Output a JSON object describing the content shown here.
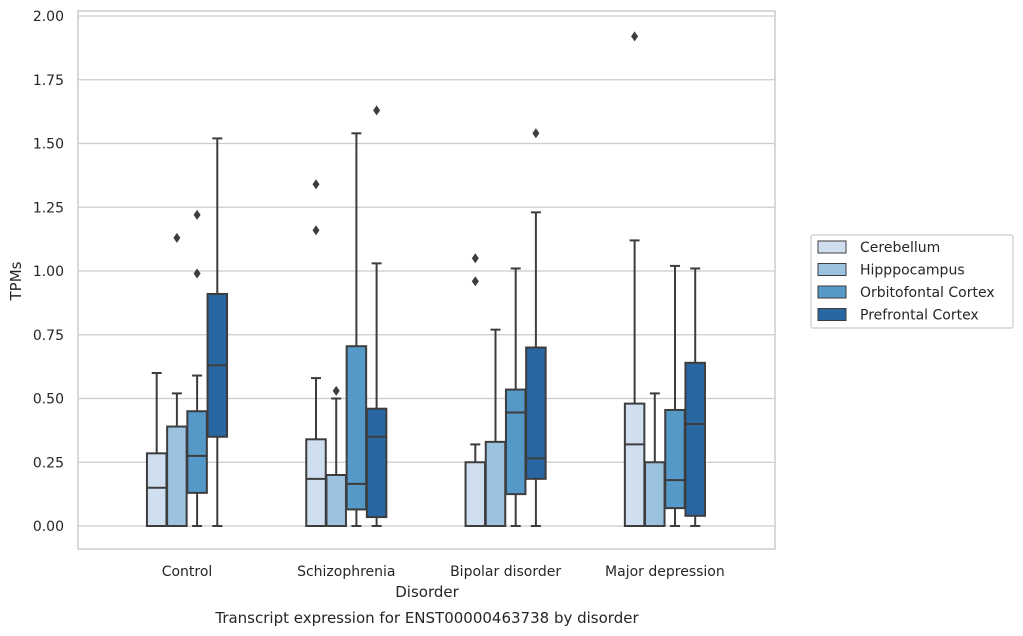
{
  "chart_data": {
    "type": "box",
    "caption": "Transcript expression for ENST00000463738 by disorder",
    "xlabel": "Disorder",
    "ylabel": "TPMs",
    "ylim": [
      -0.09,
      2.02
    ],
    "yticks": [
      "0.00",
      "0.25",
      "0.50",
      "0.75",
      "1.00",
      "1.25",
      "1.50",
      "1.75",
      "2.00"
    ],
    "grid": true,
    "legend_position": "right",
    "categories": [
      "Control",
      "Schizophrenia",
      "Bipolar disorder",
      "Major depression"
    ],
    "series": [
      {
        "name": "Cerebellum",
        "color": "#cfdff0",
        "boxes": [
          {
            "whisker_low": 0.0,
            "q1": 0.0,
            "median": 0.15,
            "q3": 0.285,
            "whisker_high": 0.6,
            "outliers": []
          },
          {
            "whisker_low": 0.0,
            "q1": 0.0,
            "median": 0.185,
            "q3": 0.34,
            "whisker_high": 0.58,
            "outliers": [
              1.16,
              1.34
            ]
          },
          {
            "whisker_low": 0.0,
            "q1": 0.0,
            "median": 0.0,
            "q3": 0.25,
            "whisker_high": 0.32,
            "outliers": [
              0.96,
              1.05
            ]
          },
          {
            "whisker_low": 0.0,
            "q1": 0.0,
            "median": 0.32,
            "q3": 0.48,
            "whisker_high": 1.12,
            "outliers": [
              1.92
            ]
          }
        ]
      },
      {
        "name": "Hipppocampus",
        "color": "#9bc3df",
        "boxes": [
          {
            "whisker_low": 0.0,
            "q1": 0.0,
            "median": 0.0,
            "q3": 0.39,
            "whisker_high": 0.52,
            "outliers": [
              1.13
            ]
          },
          {
            "whisker_low": 0.0,
            "q1": 0.0,
            "median": 0.0,
            "q3": 0.2,
            "whisker_high": 0.5,
            "outliers": [
              0.53
            ]
          },
          {
            "whisker_low": 0.0,
            "q1": 0.0,
            "median": 0.0,
            "q3": 0.33,
            "whisker_high": 0.77,
            "outliers": []
          },
          {
            "whisker_low": 0.0,
            "q1": 0.0,
            "median": 0.0,
            "q3": 0.25,
            "whisker_high": 0.52,
            "outliers": []
          }
        ]
      },
      {
        "name": "Orbitofontal Cortex",
        "color": "#5599c8",
        "boxes": [
          {
            "whisker_low": 0.0,
            "q1": 0.13,
            "median": 0.275,
            "q3": 0.45,
            "whisker_high": 0.59,
            "outliers": [
              0.99,
              1.22
            ]
          },
          {
            "whisker_low": 0.0,
            "q1": 0.065,
            "median": 0.165,
            "q3": 0.705,
            "whisker_high": 1.54,
            "outliers": []
          },
          {
            "whisker_low": 0.0,
            "q1": 0.125,
            "median": 0.445,
            "q3": 0.535,
            "whisker_high": 1.01,
            "outliers": []
          },
          {
            "whisker_low": 0.0,
            "q1": 0.07,
            "median": 0.18,
            "q3": 0.455,
            "whisker_high": 1.02,
            "outliers": []
          }
        ]
      },
      {
        "name": "Prefrontal Cortex",
        "color": "#2967a3",
        "boxes": [
          {
            "whisker_low": 0.0,
            "q1": 0.35,
            "median": 0.63,
            "q3": 0.91,
            "whisker_high": 1.52,
            "outliers": []
          },
          {
            "whisker_low": 0.0,
            "q1": 0.035,
            "median": 0.35,
            "q3": 0.46,
            "whisker_high": 1.03,
            "outliers": [
              1.63
            ]
          },
          {
            "whisker_low": 0.0,
            "q1": 0.185,
            "median": 0.265,
            "q3": 0.7,
            "whisker_high": 1.23,
            "outliers": [
              1.54
            ]
          },
          {
            "whisker_low": 0.0,
            "q1": 0.04,
            "median": 0.4,
            "q3": 0.64,
            "whisker_high": 1.01,
            "outliers": []
          }
        ]
      }
    ]
  }
}
